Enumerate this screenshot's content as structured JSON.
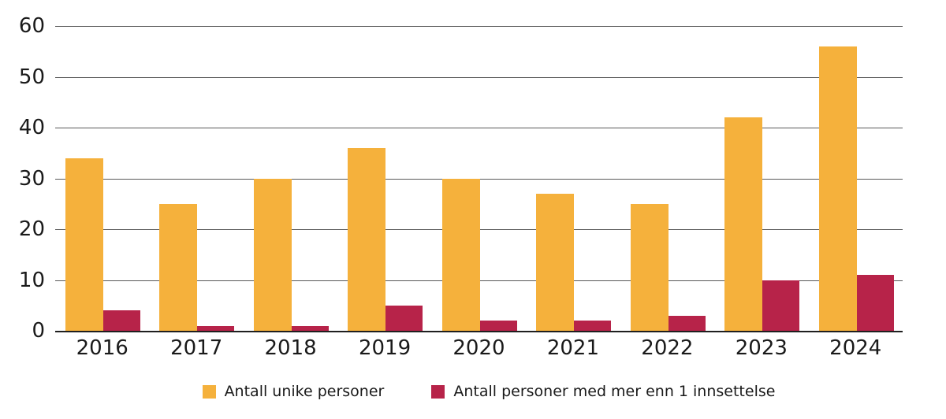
{
  "chart_data": {
    "type": "bar",
    "title": "",
    "xlabel": "",
    "ylabel": "",
    "categories": [
      "2016",
      "2017",
      "2018",
      "2019",
      "2020",
      "2021",
      "2022",
      "2023",
      "2024"
    ],
    "series": [
      {
        "name": "Antall unike personer",
        "color": "#F5B13C",
        "values": [
          34,
          25,
          30,
          36,
          30,
          27,
          25,
          42,
          56
        ]
      },
      {
        "name": "Antall personer med mer enn 1 innsettelse",
        "color": "#B72349",
        "values": [
          4,
          1,
          1,
          5,
          2,
          2,
          3,
          10,
          11
        ]
      }
    ],
    "ylim": [
      0,
      60
    ],
    "yticks": [
      0,
      10,
      20,
      30,
      40,
      50,
      60
    ],
    "grid": true,
    "legend_position": "bottom"
  },
  "colors": {
    "background": "#ffffff",
    "gridline": "#595959",
    "baseline": "#1f1f1f",
    "text": "#1a1a1a"
  }
}
